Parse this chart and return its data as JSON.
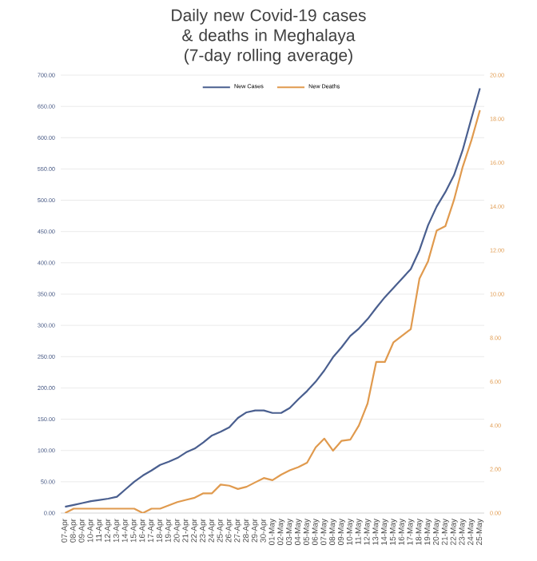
{
  "chart_data": {
    "type": "line",
    "title": "Daily new Covid-19 cases & deaths in Meghalaya",
    "subtitle": "(7-day rolling average)",
    "categories": [
      "07-Apr",
      "08-Apr",
      "09-Apr",
      "10-Apr",
      "11-Apr",
      "12-Apr",
      "13-Apr",
      "14-Apr",
      "15-Apr",
      "16-Apr",
      "17-Apr",
      "18-Apr",
      "19-Apr",
      "20-Apr",
      "21-Apr",
      "22-Apr",
      "23-Apr",
      "24-Apr",
      "25-Apr",
      "26-Apr",
      "27-Apr",
      "28-Apr",
      "29-Apr",
      "30-Apr",
      "01-May",
      "02-May",
      "03-May",
      "04-May",
      "05-May",
      "06-May",
      "07-May",
      "08-May",
      "09-May",
      "10-May",
      "11-May",
      "12-May",
      "13-May",
      "14-May",
      "15-May",
      "16-May",
      "17-May",
      "18-May",
      "19-May",
      "20-May",
      "21-May",
      "22-May",
      "23-May",
      "24-May",
      "25-May"
    ],
    "series": [
      {
        "name": "New Cases",
        "color": "#4a5f8f",
        "values": [
          10,
          13,
          16,
          19,
          21,
          23,
          26,
          38,
          50,
          60,
          68,
          77,
          82,
          88,
          97,
          103,
          113,
          124,
          130,
          137,
          152,
          161,
          164,
          164,
          160,
          160,
          168,
          182,
          195,
          210,
          228,
          249,
          265,
          283,
          295,
          310,
          328,
          345,
          360,
          375,
          390,
          420,
          460,
          490,
          513,
          540,
          580,
          630,
          679
        ]
      },
      {
        "name": "New Deaths",
        "color": "#e09a4e",
        "axis": "y2",
        "values": [
          0,
          0.2,
          0.2,
          0.2,
          0.2,
          0.2,
          0.2,
          0.2,
          0.2,
          0,
          0.2,
          0.2,
          0.35,
          0.5,
          0.6,
          0.7,
          0.9,
          0.9,
          1.3,
          1.25,
          1.1,
          1.2,
          1.4,
          1.6,
          1.5,
          1.75,
          1.95,
          2.1,
          2.3,
          3.0,
          3.4,
          2.85,
          3.3,
          3.35,
          4.0,
          5.0,
          6.9,
          6.9,
          7.8,
          8.1,
          8.4,
          10.7,
          11.5,
          12.9,
          13.1,
          14.3,
          15.8,
          17,
          18.4
        ]
      }
    ],
    "ylim": [
      0,
      700
    ],
    "yticks": [
      {
        "value": 0,
        "label": "0.00"
      },
      {
        "value": 50,
        "label": "50.00"
      },
      {
        "value": 100,
        "label": "100.00"
      },
      {
        "value": 150,
        "label": "150.00"
      },
      {
        "value": 200,
        "label": "200.00"
      },
      {
        "value": 250,
        "label": "250.00"
      },
      {
        "value": 300,
        "label": "300.00"
      },
      {
        "value": 350,
        "label": "350.00"
      },
      {
        "value": 400,
        "label": "400.00"
      },
      {
        "value": 450,
        "label": "450.00"
      },
      {
        "value": 500,
        "label": "500.00"
      },
      {
        "value": 550,
        "label": "550.00"
      },
      {
        "value": 600,
        "label": "600.00"
      },
      {
        "value": 650,
        "label": "650.00"
      },
      {
        "value": 700,
        "label": "700.00"
      }
    ],
    "y2lim": [
      0,
      20
    ],
    "y2ticks": [
      {
        "value": 0,
        "label": "0.00"
      },
      {
        "value": 2,
        "label": "2.00"
      },
      {
        "value": 4,
        "label": "4.00"
      },
      {
        "value": 6,
        "label": "6.00"
      },
      {
        "value": 8,
        "label": "8.00"
      },
      {
        "value": 10,
        "label": "10.00"
      },
      {
        "value": 12,
        "label": "12.00"
      },
      {
        "value": 14,
        "label": "14.00"
      },
      {
        "value": 16,
        "label": "16.00"
      },
      {
        "value": 18,
        "label": "18.00"
      },
      {
        "value": 20,
        "label": "20.00"
      }
    ],
    "grid": "y",
    "legend": "top",
    "marker": "none",
    "line_style": "solid"
  }
}
